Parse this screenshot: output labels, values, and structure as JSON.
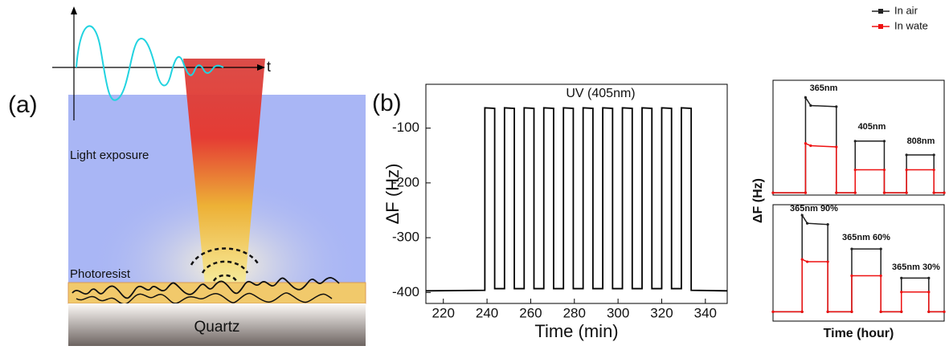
{
  "panel_a": {
    "label": "(a)",
    "t_axis": "t",
    "exposure": "Light exposure",
    "resist": "Photoresist",
    "substrate": "Quartz"
  },
  "chart_data": [
    {
      "type": "line",
      "panel_label": "(b)",
      "annotation": "UV (405nm)",
      "xlabel": "Time (min)",
      "ylabel": "ΔF (Hz)",
      "xlim": [
        212,
        350
      ],
      "ylim": [
        -420,
        -20
      ],
      "xticks": [
        220,
        240,
        260,
        280,
        300,
        320,
        340
      ],
      "yticks": [
        -100,
        -200,
        -300,
        -400
      ],
      "series": [
        {
          "color": "#000000",
          "x": [
            212,
            239,
            239,
            243.5,
            243.5,
            248,
            248,
            252.5,
            252.5,
            257,
            257,
            261.5,
            261.5,
            266,
            266,
            270.5,
            270.5,
            275,
            275,
            279.5,
            279.5,
            284,
            284,
            288.5,
            288.5,
            293,
            293,
            297.5,
            297.5,
            302,
            302,
            306.5,
            306.5,
            311,
            311,
            315.5,
            315.5,
            320,
            320,
            324.5,
            324.5,
            329,
            329,
            333.5,
            333.5,
            350
          ],
          "values": [
            -397,
            -396,
            -63,
            -64,
            -393,
            -393,
            -63,
            -64,
            -393,
            -393,
            -63,
            -64,
            -393,
            -393,
            -63,
            -64,
            -393,
            -393,
            -63,
            -64,
            -393,
            -393,
            -63,
            -64,
            -393,
            -393,
            -63,
            -64,
            -393,
            -393,
            -63,
            -64,
            -393,
            -393,
            -63,
            -64,
            -393,
            -393,
            -63,
            -64,
            -393,
            -393,
            -63,
            -64,
            -396,
            -397
          ]
        }
      ]
    },
    {
      "type": "line",
      "ylabel": "ΔF (Hz)",
      "xlim": [
        0,
        10
      ],
      "ylim": [
        0,
        10
      ],
      "legend": "upper right",
      "annotations": [
        "365nm",
        "405nm",
        "808nm"
      ],
      "series": [
        {
          "name": "In air",
          "color": "#222222",
          "x": [
            0,
            1.9,
            1.9,
            2.2,
            3.7,
            3.7,
            4.8,
            4.8,
            6.5,
            6.5,
            7.8,
            7.8,
            9.4,
            9.4,
            10
          ],
          "values": [
            0.2,
            0.2,
            8.5,
            7.8,
            7.7,
            0.2,
            0.2,
            4.7,
            4.7,
            0.2,
            0.2,
            3.5,
            3.5,
            0.2,
            0.2
          ]
        },
        {
          "name": "In wate",
          "color": "#ee1111",
          "x": [
            0,
            1.9,
            1.9,
            2.2,
            3.7,
            3.7,
            4.8,
            4.8,
            6.5,
            6.5,
            7.8,
            7.8,
            9.4,
            9.4,
            10
          ],
          "values": [
            0.2,
            0.2,
            4.5,
            4.3,
            4.2,
            0.2,
            0.2,
            2.2,
            2.2,
            0.2,
            0.2,
            2.2,
            2.2,
            0.2,
            0.2
          ]
        }
      ]
    },
    {
      "type": "line",
      "xlabel": "Time (hour)",
      "xlim": [
        0,
        10
      ],
      "ylim": [
        0,
        10
      ],
      "annotations": [
        "365nm  90%",
        "365nm  60%",
        "365nm  30%"
      ],
      "series": [
        {
          "color": "#222222",
          "x": [
            0,
            1.7,
            1.7,
            2.0,
            3.2,
            3.2,
            4.6,
            4.6,
            6.3,
            6.3,
            7.5,
            7.5,
            9.1,
            9.1,
            10
          ],
          "values": [
            0.8,
            0.8,
            9.1,
            8.4,
            8.3,
            0.8,
            0.8,
            6.2,
            6.2,
            0.8,
            0.8,
            3.7,
            3.7,
            0.8,
            0.8
          ]
        },
        {
          "color": "#ee1111",
          "x": [
            0,
            1.7,
            1.7,
            2.0,
            3.2,
            3.2,
            4.6,
            4.6,
            6.3,
            6.3,
            7.5,
            7.5,
            9.1,
            9.1,
            10
          ],
          "values": [
            0.8,
            0.8,
            5.3,
            5.1,
            5.1,
            0.8,
            0.8,
            3.9,
            3.9,
            0.8,
            0.8,
            2.5,
            2.5,
            0.8,
            0.8
          ]
        }
      ]
    }
  ]
}
